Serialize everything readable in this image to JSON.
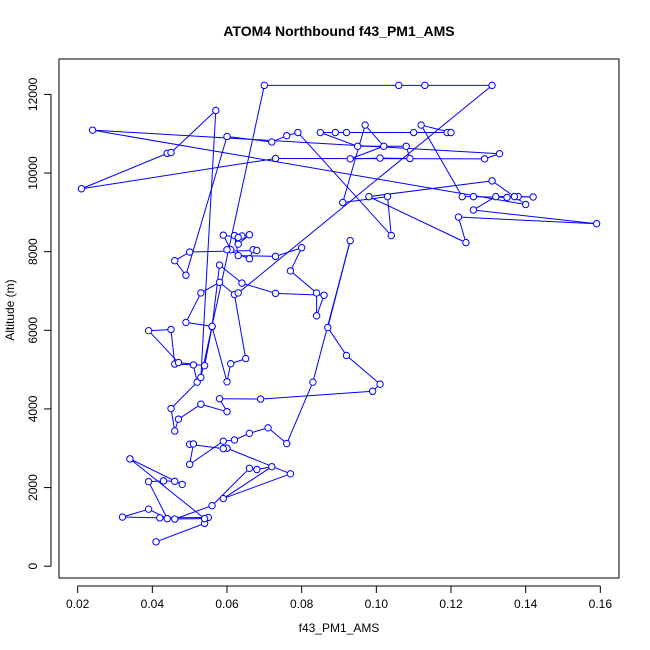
{
  "chart_data": {
    "type": "line",
    "title": "ATOM4 Northbound f43_PM1_AMS",
    "xlabel": "f43_PM1_AMS",
    "ylabel": "Altitude (m)",
    "xlim": [
      0.015,
      0.165
    ],
    "ylim": [
      -300,
      12900
    ],
    "xticks": [
      0.02,
      0.04,
      0.06,
      0.08,
      0.1,
      0.12,
      0.14,
      0.16
    ],
    "xtick_labels": [
      "0.02",
      "0.04",
      "0.06",
      "0.08",
      "0.10",
      "0.12",
      "0.14",
      "0.16"
    ],
    "yticks": [
      0,
      2000,
      4000,
      6000,
      8000,
      10000,
      12000
    ],
    "ytick_labels": [
      "0",
      "2000",
      "4000",
      "6000",
      "8000",
      "10000",
      "12000"
    ],
    "marker": "open-circle",
    "color": "#0000ff",
    "series": [
      {
        "name": "f43_PM1_AMS",
        "points": [
          [
            0.041,
            620
          ],
          [
            0.054,
            1090
          ],
          [
            0.055,
            1240
          ],
          [
            0.042,
            1230
          ],
          [
            0.032,
            1250
          ],
          [
            0.039,
            1450
          ],
          [
            0.044,
            1210
          ],
          [
            0.039,
            2150
          ],
          [
            0.043,
            2170
          ],
          [
            0.046,
            2160
          ],
          [
            0.048,
            2080
          ],
          [
            0.034,
            2730
          ],
          [
            0.054,
            1210
          ],
          [
            0.046,
            1200
          ],
          [
            0.056,
            1540
          ],
          [
            0.066,
            2490
          ],
          [
            0.068,
            2460
          ],
          [
            0.072,
            2530
          ],
          [
            0.059,
            1720
          ],
          [
            0.077,
            2350
          ],
          [
            0.06,
            3000
          ],
          [
            0.059,
            2990
          ],
          [
            0.05,
            3100
          ],
          [
            0.051,
            3110
          ],
          [
            0.05,
            2590
          ],
          [
            0.059,
            3180
          ],
          [
            0.062,
            3210
          ],
          [
            0.066,
            3380
          ],
          [
            0.071,
            3520
          ],
          [
            0.076,
            3120
          ],
          [
            0.083,
            4680
          ],
          [
            0.093,
            8280
          ],
          [
            0.087,
            6070
          ],
          [
            0.092,
            5360
          ],
          [
            0.101,
            4630
          ],
          [
            0.099,
            4450
          ],
          [
            0.069,
            4250
          ],
          [
            0.058,
            4260
          ],
          [
            0.06,
            3930
          ],
          [
            0.053,
            4120
          ],
          [
            0.047,
            3740
          ],
          [
            0.046,
            3440
          ],
          [
            0.045,
            4010
          ],
          [
            0.052,
            4680
          ],
          [
            0.051,
            5120
          ],
          [
            0.046,
            5140
          ],
          [
            0.045,
            6020
          ],
          [
            0.039,
            5990
          ],
          [
            0.047,
            5180
          ],
          [
            0.054,
            5100
          ],
          [
            0.056,
            6090
          ],
          [
            0.06,
            4690
          ],
          [
            0.061,
            5150
          ],
          [
            0.065,
            5280
          ],
          [
            0.062,
            6910
          ],
          [
            0.058,
            7220
          ],
          [
            0.053,
            6950
          ],
          [
            0.049,
            6200
          ],
          [
            0.056,
            6100
          ],
          [
            0.058,
            7660
          ],
          [
            0.064,
            7200
          ],
          [
            0.073,
            6940
          ],
          [
            0.086,
            6890
          ],
          [
            0.084,
            6370
          ],
          [
            0.084,
            6950
          ],
          [
            0.077,
            7510
          ],
          [
            0.08,
            8100
          ],
          [
            0.073,
            7880
          ],
          [
            0.063,
            7900
          ],
          [
            0.062,
            8410
          ],
          [
            0.064,
            8400
          ],
          [
            0.066,
            8430
          ],
          [
            0.063,
            8190
          ],
          [
            0.063,
            8360
          ],
          [
            0.059,
            8420
          ],
          [
            0.061,
            8050
          ],
          [
            0.06,
            8050
          ],
          [
            0.066,
            7820
          ],
          [
            0.067,
            8050
          ],
          [
            0.068,
            8030
          ],
          [
            0.05,
            7990
          ],
          [
            0.046,
            7770
          ],
          [
            0.049,
            7400
          ],
          [
            0.06,
            10930
          ],
          [
            0.072,
            10790
          ],
          [
            0.076,
            10950
          ],
          [
            0.079,
            11030
          ],
          [
            0.104,
            8410
          ],
          [
            0.103,
            9400
          ],
          [
            0.091,
            9250
          ],
          [
            0.097,
            11220
          ],
          [
            0.102,
            10680
          ],
          [
            0.093,
            10360
          ],
          [
            0.101,
            10380
          ],
          [
            0.109,
            10370
          ],
          [
            0.108,
            10680
          ],
          [
            0.095,
            10680
          ],
          [
            0.085,
            11030
          ],
          [
            0.089,
            11030
          ],
          [
            0.092,
            11030
          ],
          [
            0.11,
            11030
          ],
          [
            0.119,
            11030
          ],
          [
            0.12,
            11030
          ],
          [
            0.112,
            11220
          ],
          [
            0.123,
            9400
          ],
          [
            0.126,
            9400
          ],
          [
            0.135,
            9380
          ],
          [
            0.138,
            9400
          ],
          [
            0.142,
            9390
          ],
          [
            0.137,
            9400
          ],
          [
            0.132,
            9400
          ],
          [
            0.126,
            9060
          ],
          [
            0.159,
            8710
          ],
          [
            0.122,
            8880
          ],
          [
            0.124,
            8230
          ],
          [
            0.098,
            9400
          ],
          [
            0.131,
            9800
          ],
          [
            0.14,
            9200
          ],
          [
            0.024,
            11090
          ],
          [
            0.133,
            10490
          ],
          [
            0.129,
            10360
          ],
          [
            0.073,
            10370
          ],
          [
            0.021,
            9600
          ],
          [
            0.044,
            10500
          ],
          [
            0.045,
            10520
          ],
          [
            0.057,
            11590
          ],
          [
            0.053,
            4800
          ],
          [
            0.07,
            12230
          ],
          [
            0.106,
            12230
          ],
          [
            0.113,
            12230
          ],
          [
            0.131,
            12230
          ],
          [
            0.063,
            6950
          ]
        ]
      }
    ]
  }
}
